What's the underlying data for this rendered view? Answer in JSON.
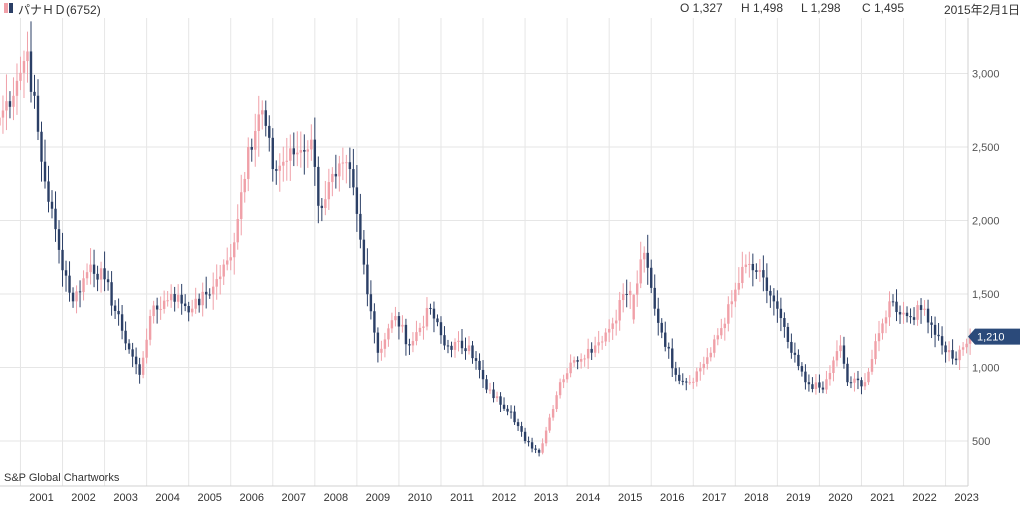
{
  "header": {
    "ticker": "パナＨＤ(6752)",
    "open": "O 1,327",
    "high": "H 1,498",
    "low": "L 1,298",
    "close": "C 1,495",
    "date": "2015年2月1日"
  },
  "credit": "S&P Global Chartworks",
  "last_price_label": "1,210",
  "colors": {
    "up": "#f0a0a8",
    "down": "#2b3f66",
    "grid": "#e6e6e6",
    "price_tag": "#2b4a7a"
  },
  "chart_data": {
    "type": "candlestick",
    "interval": "monthly",
    "title": "",
    "xlabel": "",
    "ylabel": "",
    "ylim": [
      270,
      3300
    ],
    "y_ticks": [
      500,
      1000,
      1500,
      2000,
      2500,
      3000
    ],
    "y_tick_labels": [
      "500",
      "1,000",
      "1,500",
      "2,000",
      "2,500",
      "3,000"
    ],
    "x_ticks": [
      "2001",
      "2002",
      "2003",
      "2004",
      "2005",
      "2006",
      "2007",
      "2008",
      "2009",
      "2010",
      "2011",
      "2012",
      "2013",
      "2014",
      "2015",
      "2016",
      "2017",
      "2018",
      "2019",
      "2020",
      "2021",
      "2022",
      "2023"
    ],
    "x_range": [
      "2000-01",
      "2023-02"
    ],
    "grid": true,
    "last_price": 1210,
    "selected_bar": {
      "date": "2015-02",
      "open": 1327,
      "high": 1498,
      "low": 1298,
      "close": 1495
    },
    "close_anchors": [
      [
        "2000-01",
        2700
      ],
      [
        "2000-06",
        2950
      ],
      [
        "2000-09",
        3150
      ],
      [
        "2001-01",
        2400
      ],
      [
        "2001-06",
        1800
      ],
      [
        "2001-10",
        1450
      ],
      [
        "2002-03",
        1700
      ],
      [
        "2002-07",
        1600
      ],
      [
        "2002-12",
        1250
      ],
      [
        "2003-05",
        950
      ],
      [
        "2003-08",
        1350
      ],
      [
        "2004-02",
        1500
      ],
      [
        "2004-08",
        1400
      ],
      [
        "2005-02",
        1550
      ],
      [
        "2005-07",
        1750
      ],
      [
        "2005-12",
        2500
      ],
      [
        "2006-04",
        2750
      ],
      [
        "2006-07",
        2350
      ],
      [
        "2007-01",
        2450
      ],
      [
        "2007-06",
        2550
      ],
      [
        "2007-08",
        2100
      ],
      [
        "2008-01",
        2300
      ],
      [
        "2008-05",
        2350
      ],
      [
        "2008-09",
        1700
      ],
      [
        "2009-01",
        1100
      ],
      [
        "2009-06",
        1350
      ],
      [
        "2009-10",
        1150
      ],
      [
        "2010-04",
        1400
      ],
      [
        "2010-08",
        1150
      ],
      [
        "2011-03",
        1150
      ],
      [
        "2011-08",
        850
      ],
      [
        "2012-03",
        700
      ],
      [
        "2012-07",
        500
      ],
      [
        "2012-11",
        420
      ],
      [
        "2013-05",
        900
      ],
      [
        "2013-09",
        1050
      ],
      [
        "2014-03",
        1150
      ],
      [
        "2014-08",
        1300
      ],
      [
        "2014-11",
        1500
      ],
      [
        "2015-02",
        1495
      ],
      [
        "2015-05",
        1780
      ],
      [
        "2015-08",
        1400
      ],
      [
        "2016-02",
        950
      ],
      [
        "2016-06",
        900
      ],
      [
        "2016-12",
        1100
      ],
      [
        "2017-06",
        1450
      ],
      [
        "2017-10",
        1700
      ],
      [
        "2018-01",
        1650
      ],
      [
        "2018-06",
        1450
      ],
      [
        "2018-11",
        1100
      ],
      [
        "2019-03",
        900
      ],
      [
        "2019-08",
        850
      ],
      [
        "2020-01",
        1150
      ],
      [
        "2020-03",
        900
      ],
      [
        "2020-08",
        900
      ],
      [
        "2021-01",
        1300
      ],
      [
        "2021-03",
        1450
      ],
      [
        "2021-08",
        1350
      ],
      [
        "2022-01",
        1400
      ],
      [
        "2022-06",
        1150
      ],
      [
        "2022-10",
        1050
      ],
      [
        "2023-02",
        1210
      ]
    ]
  }
}
